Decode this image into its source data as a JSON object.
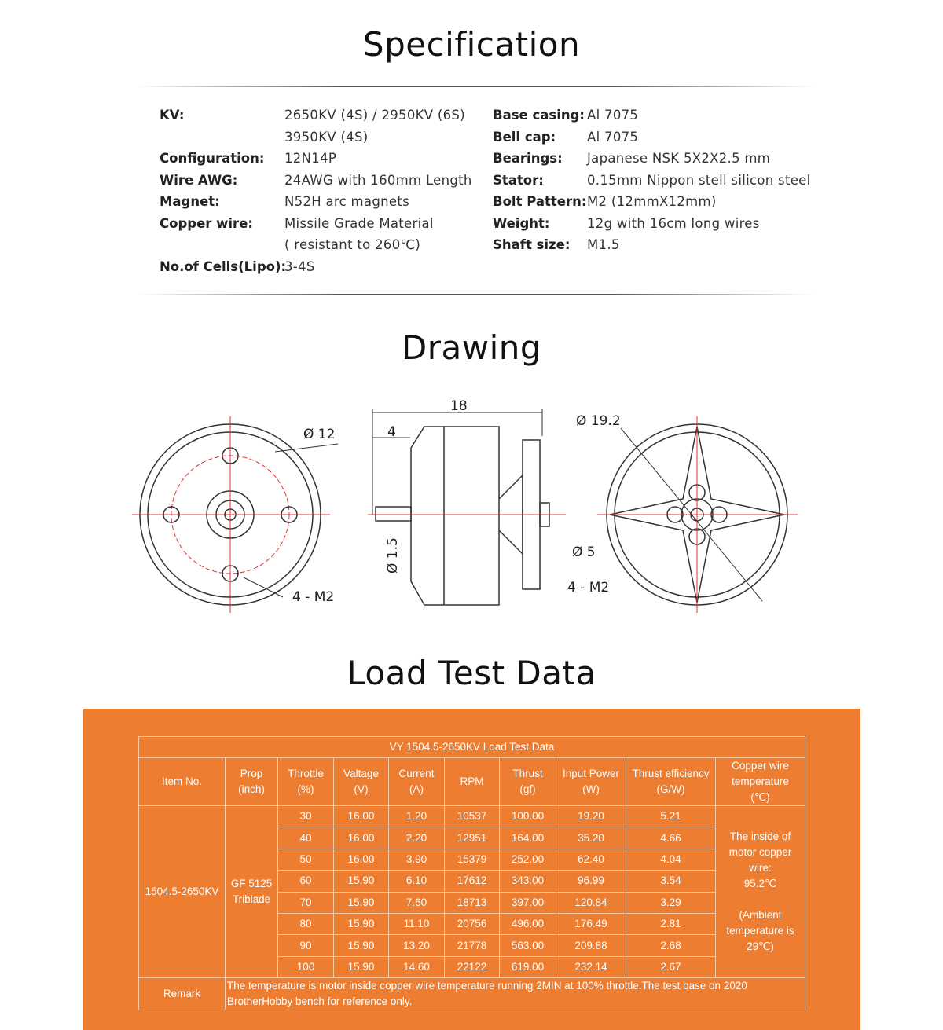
{
  "headings": {
    "spec": "Specification",
    "drawing": "Drawing",
    "load": "Load Test Data"
  },
  "spec_left": [
    {
      "label": "KV:",
      "value": "2650KV (4S) / 2950KV (6S)"
    },
    {
      "label": "",
      "value": "3950KV (4S)"
    },
    {
      "label": "Configuration:",
      "value": "12N14P"
    },
    {
      "label": "Wire AWG:",
      "value": "24AWG with 160mm Length"
    },
    {
      "label": "Magnet:",
      "value": "N52H arc magnets"
    },
    {
      "label": "Copper wire:",
      "value": "Missile Grade Material"
    },
    {
      "label": "",
      "value": "( resistant to 260℃)"
    },
    {
      "label": "No.of Cells(Lipo):",
      "value": "3-4S"
    }
  ],
  "spec_right": [
    {
      "label": "Base casing:",
      "value": "Al 7075"
    },
    {
      "label": "Bell cap:",
      "value": "Al 7075"
    },
    {
      "label": "Bearings:",
      "value": "Japanese NSK 5X2X2.5 mm"
    },
    {
      "label": "Stator:",
      "value": "0.15mm Nippon stell silicon steel"
    },
    {
      "label": "Bolt Pattern:",
      "value": "M2 (12mmX12mm)"
    },
    {
      "label": "Weight:",
      "value": "12g with 16cm long wires"
    },
    {
      "label": "Shaft size:",
      "value": "M1.5"
    }
  ],
  "drawing": {
    "d12": "Ø 12",
    "m2a": "4 - M2",
    "len18": "18",
    "len4": "4",
    "shaft": "Ø 1.5",
    "d192": "Ø 19.2",
    "d5": "Ø 5",
    "m2b": "4 - M2"
  },
  "table": {
    "title": "VY 1504.5-2650KV Load Test Data",
    "headers": [
      "Item No.",
      "Prop\n(inch)",
      "Throttle\n(%)",
      "Valtage\n(V)",
      "Current\n(A)",
      "RPM",
      "Thrust\n(gf)",
      "Input Power\n(W)",
      "Thrust efficiency\n(G/W)",
      "Copper wire\ntemperature\n(℃)"
    ],
    "item": "1504.5-2650KV",
    "prop": "GF 5125\nTriblade",
    "rows": [
      [
        "30",
        "16.00",
        "1.20",
        "10537",
        "100.00",
        "19.20",
        "5.21"
      ],
      [
        "40",
        "16.00",
        "2.20",
        "12951",
        "164.00",
        "35.20",
        "4.66"
      ],
      [
        "50",
        "16.00",
        "3.90",
        "15379",
        "252.00",
        "62.40",
        "4.04"
      ],
      [
        "60",
        "15.90",
        "6.10",
        "17612",
        "343.00",
        "96.99",
        "3.54"
      ],
      [
        "70",
        "15.90",
        "7.60",
        "18713",
        "397.00",
        "120.84",
        "3.29"
      ],
      [
        "80",
        "15.90",
        "11.10",
        "20756",
        "496.00",
        "176.49",
        "2.81"
      ],
      [
        "90",
        "15.90",
        "13.20",
        "21778",
        "563.00",
        "209.88",
        "2.68"
      ],
      [
        "100",
        "15.90",
        "14.60",
        "22122",
        "619.00",
        "232.14",
        "2.67"
      ]
    ],
    "temp": "The inside of\nmotor copper\nwire:\n95.2℃\n\n(Ambient\ntemperature is\n29℃)",
    "remark_label": "Remark",
    "remark": "The temperature is motor inside copper wire temperature running 2MIN at 100% throttle.The test base on 2020 BrotherHobby bench for reference only."
  },
  "colors": {
    "orange": "#ED7D31"
  }
}
